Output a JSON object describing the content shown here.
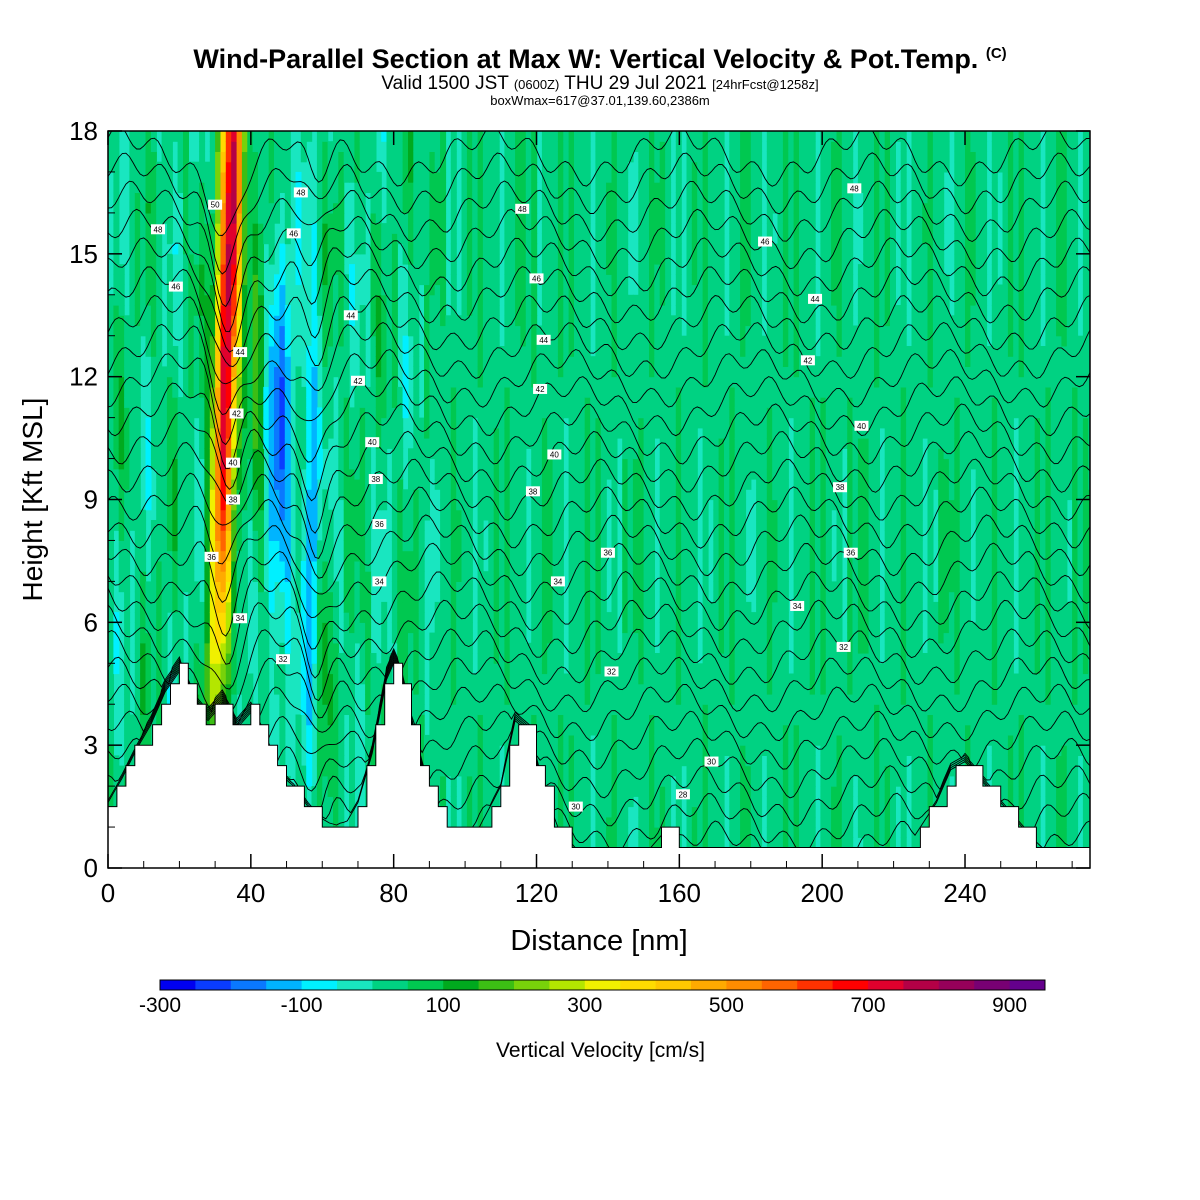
{
  "header": {
    "title": "Wind-Parallel Section at Max W: Vertical Velocity & Pot.Temp.",
    "copyright": "(C)",
    "valid_prefix": "Valid 1500 JST",
    "valid_utc": "(0600Z)",
    "valid_date": "THU 29 Jul 2021",
    "forecast": "[24hrFcst@1258z]",
    "box_info": "boxWmax=617@37.01,139.60,2386m"
  },
  "colors": {
    "background_field": "#19e6c0",
    "terrain": "#ffffff",
    "contour": "#000000",
    "frame": "#000000"
  },
  "chart_data": {
    "type": "heatmap",
    "xlabel": "Distance [nm]",
    "ylabel": "Height [Kft MSL]",
    "xlim": [
      0,
      275
    ],
    "ylim": [
      0,
      18
    ],
    "x_ticks": [
      0,
      40,
      80,
      120,
      160,
      200,
      240
    ],
    "y_ticks": [
      0,
      3,
      6,
      9,
      12,
      15,
      18
    ],
    "colorbar": {
      "label": "Vertical Velocity [cm/s]",
      "tick_labels": [
        "-300",
        "-100",
        "100",
        "300",
        "500",
        "700",
        "900"
      ],
      "tick_values": [
        -300,
        -100,
        100,
        300,
        500,
        700,
        900
      ],
      "range": [
        -300,
        950
      ],
      "step": 50,
      "colors": [
        "#0000f0",
        "#0a3cff",
        "#0a78ff",
        "#00b4ff",
        "#00f0ff",
        "#19e6c0",
        "#00d282",
        "#00c850",
        "#00aa1e",
        "#3cbe14",
        "#78d20a",
        "#b4e600",
        "#f0f000",
        "#ffdc00",
        "#ffc800",
        "#ffaa00",
        "#ff8c00",
        "#ff6400",
        "#ff3200",
        "#ff0000",
        "#e1002d",
        "#b40046",
        "#96005a",
        "#780073",
        "#64008c"
      ]
    },
    "terrain_profile": {
      "x": [
        0,
        4,
        8,
        12,
        16,
        20,
        24,
        28,
        32,
        36,
        40,
        44,
        48,
        52,
        56,
        58,
        62,
        66,
        70,
        74,
        78,
        80,
        82,
        86,
        90,
        94,
        98,
        104,
        110,
        114,
        118,
        122,
        126,
        130,
        140,
        150,
        155,
        158,
        162,
        170,
        180,
        190,
        200,
        210,
        220,
        226,
        232,
        236,
        240,
        246,
        252,
        258,
        264,
        270,
        275
      ],
      "height_kft": [
        1.6,
        2.2,
        2.9,
        3.5,
        4.3,
        4.8,
        4.0,
        3.6,
        4.0,
        3.4,
        3.8,
        3.1,
        2.3,
        2.0,
        1.5,
        1.3,
        1.1,
        1.0,
        1.6,
        2.8,
        4.6,
        5.0,
        4.6,
        3.1,
        1.8,
        1.0,
        0.8,
        1.0,
        2.0,
        3.6,
        3.3,
        1.9,
        1.0,
        0.5,
        0.3,
        0.3,
        0.8,
        0.8,
        0.3,
        0.3,
        0.3,
        0.3,
        0.3,
        0.3,
        0.3,
        0.8,
        1.6,
        2.4,
        2.6,
        2.0,
        1.4,
        0.8,
        0.3,
        0.3,
        0.3
      ]
    },
    "isentrope_labels": [
      {
        "x": 14,
        "y": 15.6,
        "text": "48"
      },
      {
        "x": 19,
        "y": 14.2,
        "text": "46"
      },
      {
        "x": 30,
        "y": 16.2,
        "text": "50"
      },
      {
        "x": 54,
        "y": 16.5,
        "text": "48"
      },
      {
        "x": 52,
        "y": 15.5,
        "text": "46"
      },
      {
        "x": 68,
        "y": 13.5,
        "text": "44"
      },
      {
        "x": 37,
        "y": 12.6,
        "text": "44"
      },
      {
        "x": 70,
        "y": 11.9,
        "text": "42"
      },
      {
        "x": 36,
        "y": 11.1,
        "text": "42"
      },
      {
        "x": 74,
        "y": 10.4,
        "text": "40"
      },
      {
        "x": 35,
        "y": 9.9,
        "text": "40"
      },
      {
        "x": 75,
        "y": 9.5,
        "text": "38"
      },
      {
        "x": 35,
        "y": 9.0,
        "text": "38"
      },
      {
        "x": 76,
        "y": 8.4,
        "text": "36"
      },
      {
        "x": 29,
        "y": 7.6,
        "text": "36"
      },
      {
        "x": 76,
        "y": 7.0,
        "text": "34"
      },
      {
        "x": 37,
        "y": 6.1,
        "text": "34"
      },
      {
        "x": 49,
        "y": 5.1,
        "text": "32"
      },
      {
        "x": 116,
        "y": 16.1,
        "text": "48"
      },
      {
        "x": 120,
        "y": 14.4,
        "text": "46"
      },
      {
        "x": 122,
        "y": 12.9,
        "text": "44"
      },
      {
        "x": 121,
        "y": 11.7,
        "text": "42"
      },
      {
        "x": 125,
        "y": 10.1,
        "text": "40"
      },
      {
        "x": 119,
        "y": 9.2,
        "text": "38"
      },
      {
        "x": 140,
        "y": 7.7,
        "text": "36"
      },
      {
        "x": 126,
        "y": 7.0,
        "text": "34"
      },
      {
        "x": 141,
        "y": 4.8,
        "text": "32"
      },
      {
        "x": 209,
        "y": 16.6,
        "text": "48"
      },
      {
        "x": 184,
        "y": 15.3,
        "text": "46"
      },
      {
        "x": 198,
        "y": 13.9,
        "text": "44"
      },
      {
        "x": 196,
        "y": 12.4,
        "text": "42"
      },
      {
        "x": 211,
        "y": 10.8,
        "text": "40"
      },
      {
        "x": 205,
        "y": 9.3,
        "text": "38"
      },
      {
        "x": 208,
        "y": 7.7,
        "text": "36"
      },
      {
        "x": 193,
        "y": 6.4,
        "text": "34"
      },
      {
        "x": 206,
        "y": 5.4,
        "text": "32"
      },
      {
        "x": 169,
        "y": 2.6,
        "text": "30"
      },
      {
        "x": 161,
        "y": 1.8,
        "text": "28"
      },
      {
        "x": 131,
        "y": 1.5,
        "text": "30"
      }
    ]
  }
}
